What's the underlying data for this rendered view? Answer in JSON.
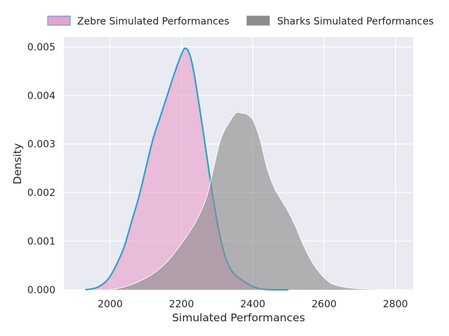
{
  "chart_data": {
    "type": "area",
    "title": "",
    "xlabel": "Simulated Performances",
    "ylabel": "Density",
    "xlim": [
      1870,
      2850
    ],
    "ylim": [
      0,
      0.0052
    ],
    "x_ticks": [
      2000,
      2200,
      2400,
      2600,
      2800
    ],
    "x_tick_labels": [
      "2000",
      "2200",
      "2400",
      "2600",
      "2800"
    ],
    "y_ticks": [
      0,
      0.001,
      0.002,
      0.003,
      0.004,
      0.005
    ],
    "y_tick_labels": [
      "0.000",
      "0.001",
      "0.002",
      "0.003",
      "0.004",
      "0.005"
    ],
    "grid": true,
    "legend_position": "top, outside plot, two columns",
    "background_color": "#EAEAF2",
    "series": [
      {
        "name": "Zebre Simulated Performances",
        "fill_color": "#E8A0CC",
        "line_color": "#2AA3C8",
        "x": [
          1930,
          1960,
          1985,
          2000,
          2020,
          2040,
          2060,
          2080,
          2100,
          2120,
          2140,
          2160,
          2180,
          2200,
          2210,
          2220,
          2230,
          2240,
          2260,
          2280,
          2300,
          2320,
          2340,
          2360,
          2380,
          2400,
          2420,
          2440,
          2460,
          2500
        ],
        "y": [
          0,
          4e-05,
          0.00015,
          0.00028,
          0.00055,
          0.0009,
          0.0014,
          0.0019,
          0.0025,
          0.0031,
          0.00355,
          0.004,
          0.00445,
          0.00485,
          0.00497,
          0.0049,
          0.00465,
          0.00425,
          0.0033,
          0.0023,
          0.0014,
          0.00075,
          0.0004,
          0.00025,
          0.00015,
          7e-05,
          2e-05,
          5e-06,
          0,
          0
        ]
      },
      {
        "name": "Sharks Simulated Performances",
        "fill_color": "#8C8C8C",
        "line_color": "#FFFFFF",
        "x": [
          2000,
          2040,
          2080,
          2120,
          2160,
          2200,
          2240,
          2270,
          2290,
          2310,
          2330,
          2350,
          2360,
          2370,
          2380,
          2400,
          2420,
          2440,
          2460,
          2480,
          2500,
          2520,
          2540,
          2560,
          2580,
          2600,
          2620,
          2640,
          2660,
          2700,
          2740,
          2800
        ],
        "y": [
          0,
          6e-05,
          0.00017,
          0.00033,
          0.00058,
          0.00095,
          0.0014,
          0.0019,
          0.0025,
          0.0031,
          0.0034,
          0.00362,
          0.00365,
          0.00363,
          0.00362,
          0.0035,
          0.0031,
          0.0025,
          0.0021,
          0.00185,
          0.0016,
          0.0013,
          0.00095,
          0.00065,
          0.00042,
          0.00025,
          0.00013,
          8e-05,
          5e-05,
          2e-05,
          1e-05,
          0
        ]
      }
    ]
  }
}
